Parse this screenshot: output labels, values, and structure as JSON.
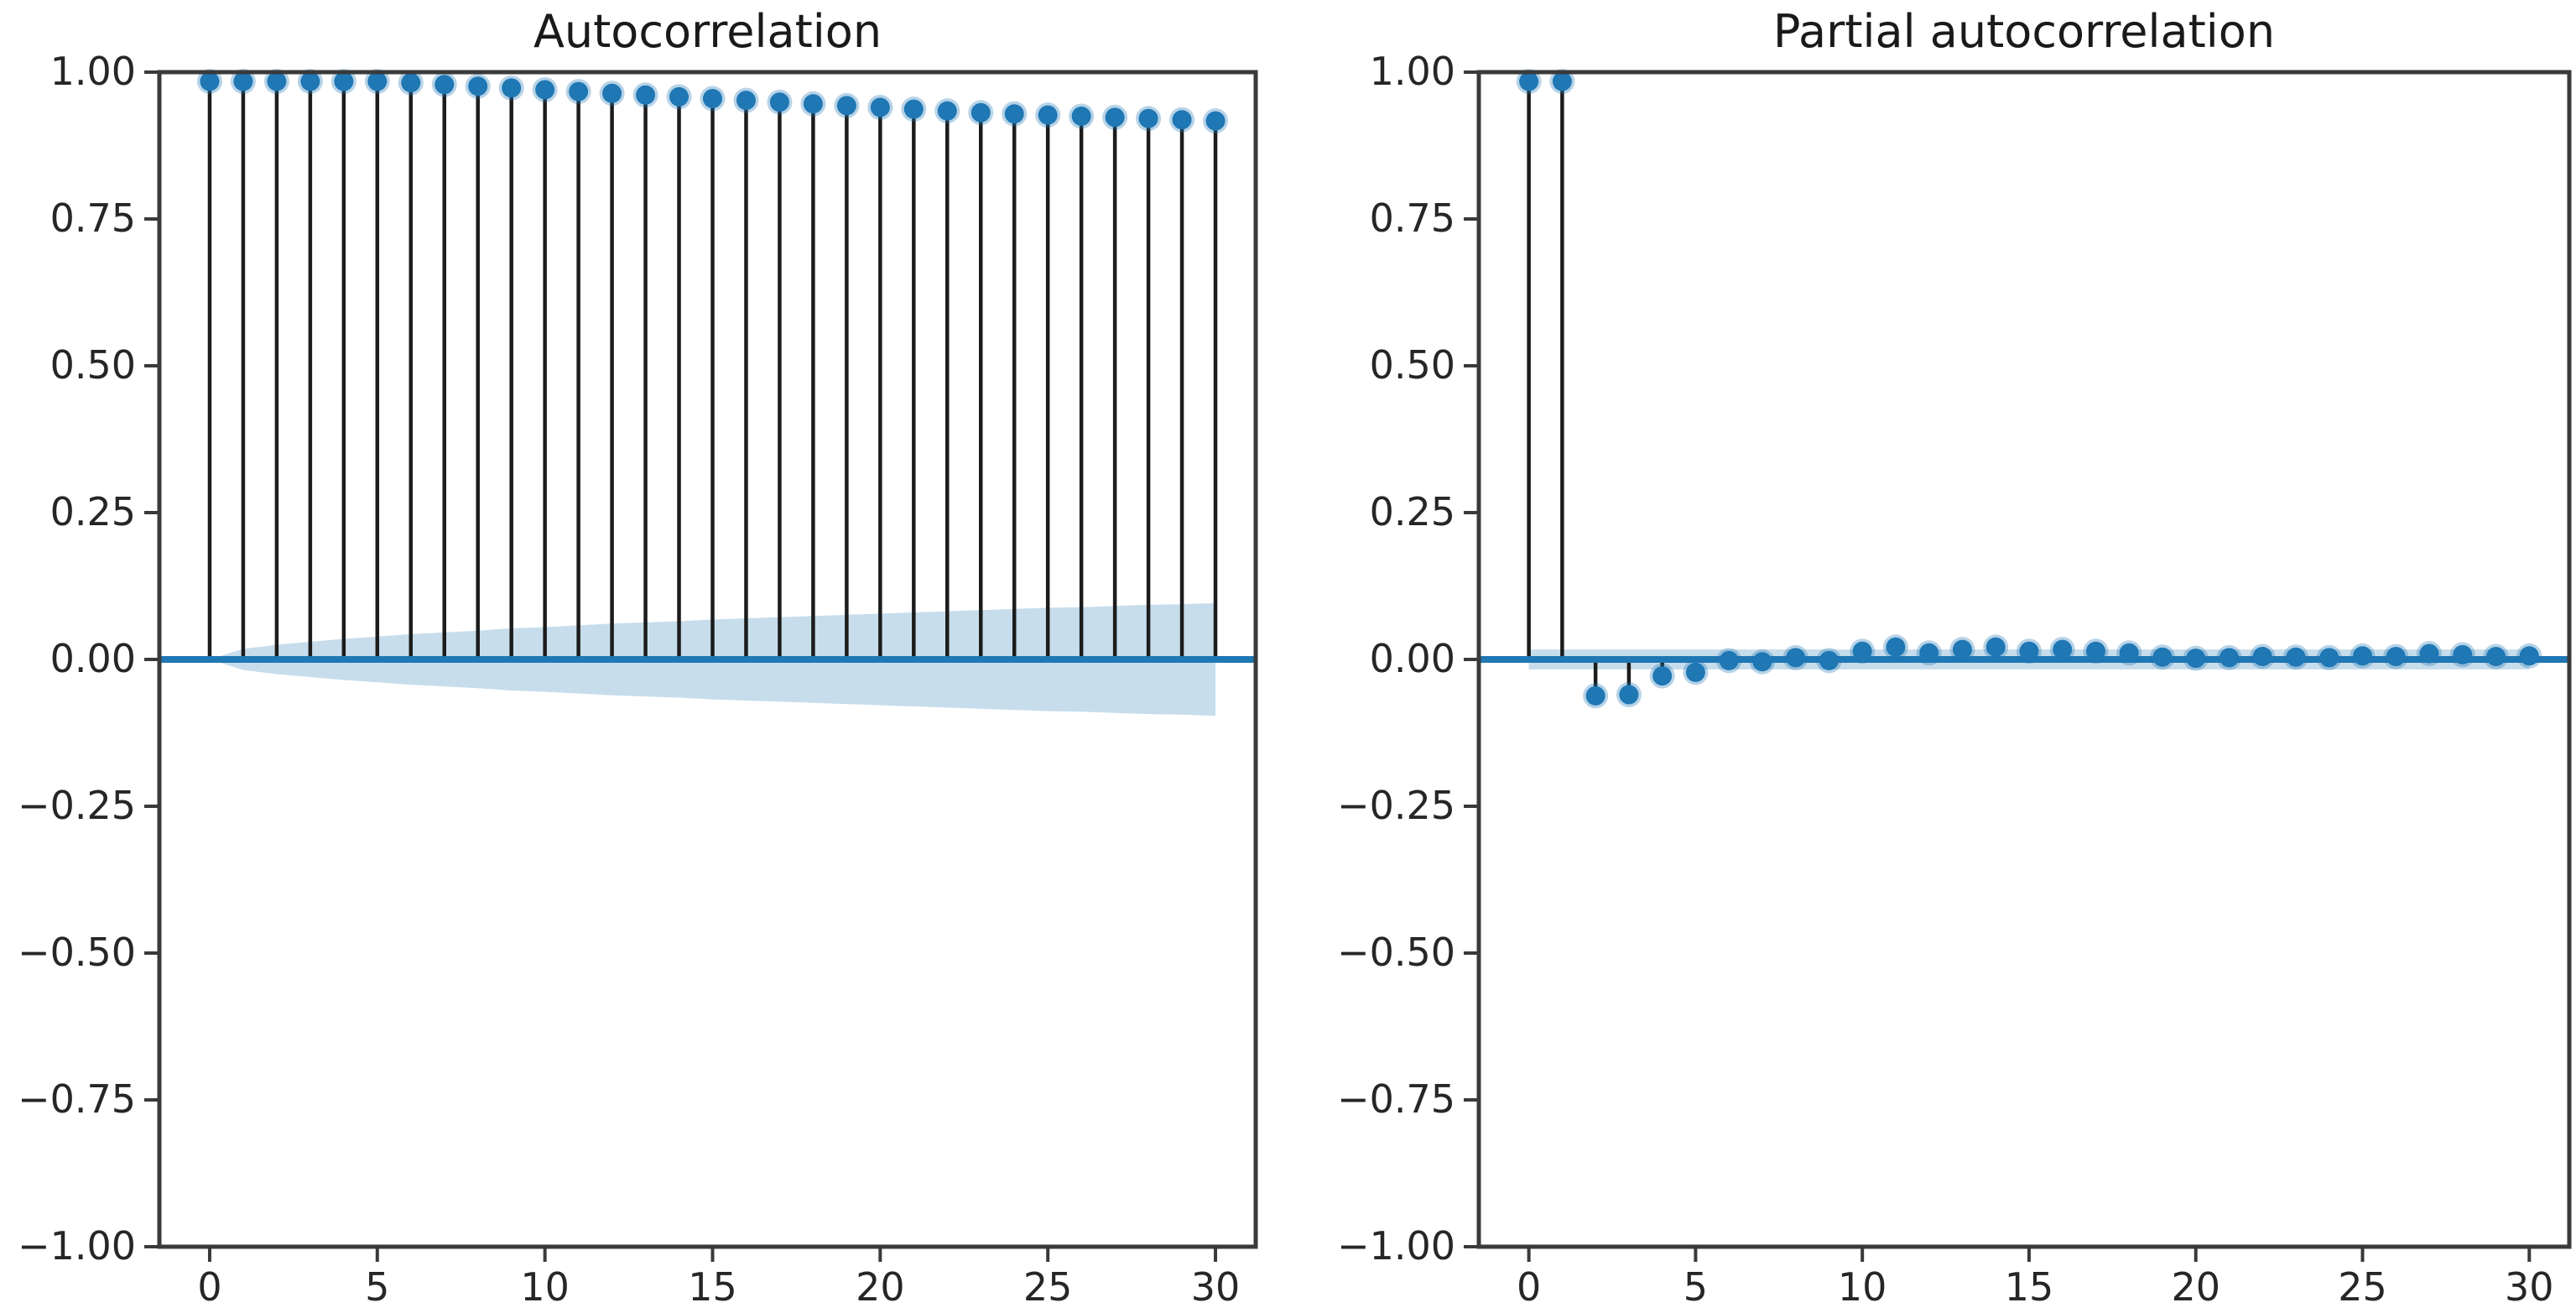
{
  "figure": {
    "colors": {
      "accent": "#1f77b4",
      "stem": "#1c1c1c",
      "band": "#c7ddec",
      "spine": "#3a3a3a",
      "text": "#262626",
      "title": "#1a1a1a",
      "background": "#ffffff"
    }
  },
  "chart_data": [
    {
      "type": "stem",
      "title": "Autocorrelation",
      "x": [
        0,
        1,
        2,
        3,
        4,
        5,
        6,
        7,
        8,
        9,
        10,
        11,
        12,
        13,
        14,
        15,
        16,
        17,
        18,
        19,
        20,
        21,
        22,
        23,
        24,
        25,
        26,
        27,
        28,
        29,
        30
      ],
      "values": [
        1.0,
        0.997,
        0.994,
        0.991,
        0.988,
        0.985,
        0.982,
        0.979,
        0.976,
        0.973,
        0.97,
        0.967,
        0.964,
        0.961,
        0.958,
        0.955,
        0.952,
        0.949,
        0.946,
        0.943,
        0.94,
        0.937,
        0.934,
        0.931,
        0.929,
        0.927,
        0.925,
        0.923,
        0.921,
        0.919,
        0.917
      ],
      "conf_band_upper": [
        0.0,
        0.018,
        0.025,
        0.03,
        0.035,
        0.039,
        0.043,
        0.046,
        0.049,
        0.053,
        0.055,
        0.058,
        0.061,
        0.063,
        0.065,
        0.068,
        0.07,
        0.072,
        0.074,
        0.076,
        0.078,
        0.08,
        0.082,
        0.084,
        0.086,
        0.088,
        0.089,
        0.091,
        0.093,
        0.094,
        0.096
      ],
      "conf_band_symmetric": true,
      "zero_line": true,
      "grid": false,
      "legend": null,
      "xlabel": "",
      "ylabel": "",
      "xlim": [
        -1.5,
        31.2
      ],
      "ylim": [
        -1,
        1
      ],
      "xticks": [
        0,
        5,
        10,
        15,
        20,
        25,
        30
      ],
      "xtick_labels": [
        "0",
        "5",
        "10",
        "15",
        "20",
        "25",
        "30"
      ],
      "yticks": [
        1.0,
        0.75,
        0.5,
        0.25,
        0.0,
        -0.25,
        -0.5,
        -0.75,
        -1.0
      ],
      "ytick_labels": [
        "1.00",
        "0.75",
        "0.50",
        "0.25",
        "0.00",
        "−0.25",
        "−0.50",
        "−0.75",
        "−1.00"
      ]
    },
    {
      "type": "stem",
      "title": "Partial autocorrelation",
      "x": [
        0,
        1,
        2,
        3,
        4,
        5,
        6,
        7,
        8,
        9,
        10,
        11,
        12,
        13,
        14,
        15,
        16,
        17,
        18,
        19,
        20,
        21,
        22,
        23,
        24,
        25,
        26,
        27,
        28,
        29,
        30
      ],
      "values": [
        1.0,
        0.997,
        -0.062,
        -0.06,
        -0.028,
        -0.022,
        -0.002,
        -0.004,
        0.003,
        -0.002,
        0.014,
        0.021,
        0.011,
        0.017,
        0.021,
        0.014,
        0.017,
        0.014,
        0.011,
        0.004,
        0.002,
        0.003,
        0.005,
        0.004,
        0.003,
        0.006,
        0.005,
        0.01,
        0.008,
        0.005,
        0.006
      ],
      "conf_band_upper": [
        0.017,
        0.017,
        0.017,
        0.017,
        0.017,
        0.017,
        0.017,
        0.017,
        0.017,
        0.017,
        0.017,
        0.017,
        0.017,
        0.017,
        0.017,
        0.017,
        0.017,
        0.017,
        0.017,
        0.017,
        0.017,
        0.017,
        0.017,
        0.017,
        0.017,
        0.017,
        0.017,
        0.017,
        0.017,
        0.017,
        0.017
      ],
      "conf_band_symmetric": true,
      "zero_line": true,
      "grid": false,
      "legend": null,
      "xlabel": "",
      "ylabel": "",
      "xlim": [
        -1.5,
        31.2
      ],
      "ylim": [
        -1,
        1
      ],
      "xticks": [
        0,
        5,
        10,
        15,
        20,
        25,
        30
      ],
      "xtick_labels": [
        "0",
        "5",
        "10",
        "15",
        "20",
        "25",
        "30"
      ],
      "yticks": [
        1.0,
        0.75,
        0.5,
        0.25,
        0.0,
        -0.25,
        -0.5,
        -0.75,
        -1.0
      ],
      "ytick_labels": [
        "1.00",
        "0.75",
        "0.50",
        "0.25",
        "0.00",
        "−0.25",
        "−0.50",
        "−0.75",
        "−1.00"
      ]
    }
  ]
}
